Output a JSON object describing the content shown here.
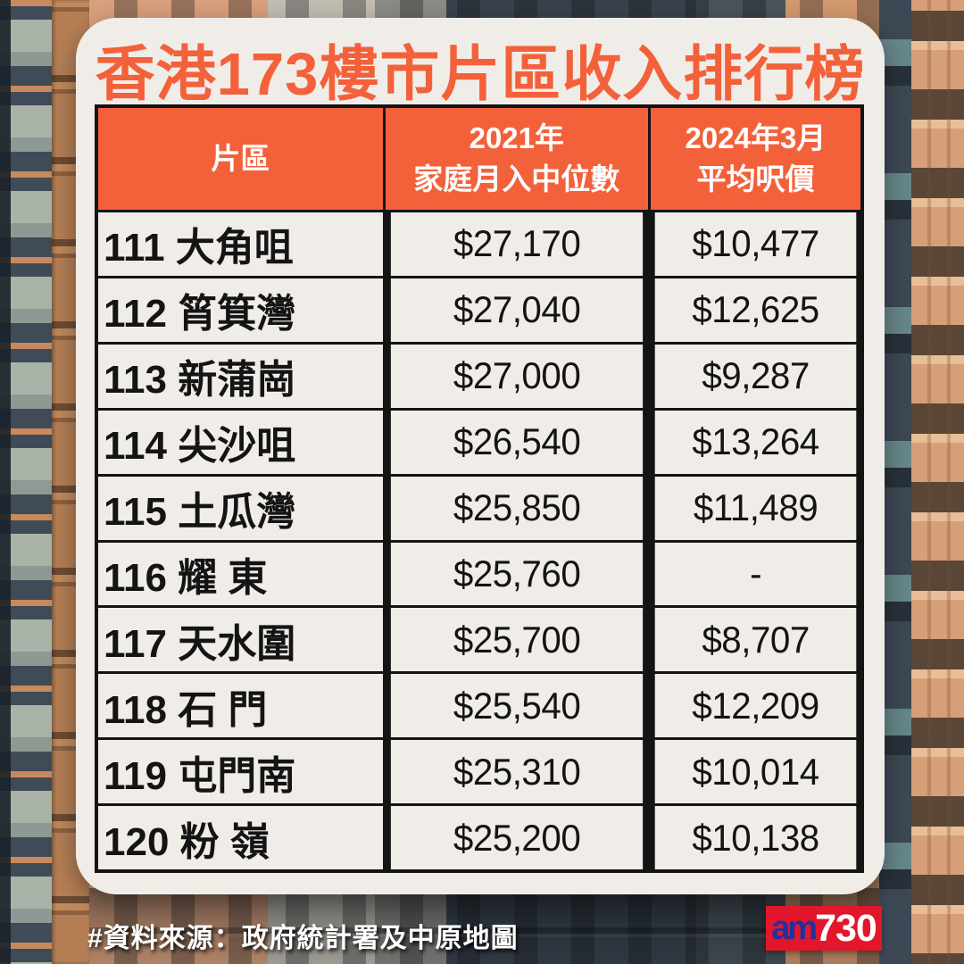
{
  "title": "香港173樓市片區收入排行榜",
  "colors": {
    "accent_orange": "#f3613b",
    "card_background": "#f0ede9",
    "table_border_black": "#141414",
    "header_text_white": "#ffffff",
    "logo_red": "#e2172c",
    "logo_blue": "#252f9e"
  },
  "table": {
    "headers": {
      "district": "片區",
      "income_line1": "2021年",
      "income_line2": "家庭月入中位數",
      "price_line1": "2024年3月",
      "price_line2": "平均呎價"
    },
    "rows": [
      {
        "district": "111 大角咀",
        "income": "$27,170",
        "price": "$10,477"
      },
      {
        "district": "112 筲箕灣",
        "income": "$27,040",
        "price": "$12,625"
      },
      {
        "district": "113 新蒲崗",
        "income": "$27,000",
        "price": "$9,287"
      },
      {
        "district": "114 尖沙咀",
        "income": "$26,540",
        "price": "$13,264"
      },
      {
        "district": "115 土瓜灣",
        "income": "$25,850",
        "price": "$11,489"
      },
      {
        "district": "116 耀 東",
        "income": "$25,760",
        "price": "-"
      },
      {
        "district": "117 天水圍",
        "income": "$25,700",
        "price": "$8,707"
      },
      {
        "district": "118 石 門",
        "income": "$25,540",
        "price": "$12,209"
      },
      {
        "district": "119 屯門南",
        "income": "$25,310",
        "price": "$10,014"
      },
      {
        "district": "120 粉 嶺",
        "income": "$25,200",
        "price": "$10,138"
      }
    ]
  },
  "footer": {
    "source": "#資料來源：政府統計署及中原地圖"
  },
  "logo": {
    "part1": "am",
    "part2": "730"
  },
  "chart_data": {
    "type": "table",
    "title": "香港173樓市片區收入排行榜",
    "columns": [
      "片區",
      "2021年 家庭月入中位數",
      "2024年3月 平均呎價"
    ],
    "rows": [
      [
        "111 大角咀",
        "$27,170",
        "$10,477"
      ],
      [
        "112 筲箕灣",
        "$27,040",
        "$12,625"
      ],
      [
        "113 新蒲崗",
        "$27,000",
        "$9,287"
      ],
      [
        "114 尖沙咀",
        "$26,540",
        "$13,264"
      ],
      [
        "115 土瓜灣",
        "$25,850",
        "$11,489"
      ],
      [
        "116 耀 東",
        "$25,760",
        "-"
      ],
      [
        "117 天水圍",
        "$25,700",
        "$8,707"
      ],
      [
        "118 石 門",
        "$25,540",
        "$12,209"
      ],
      [
        "119 屯門南",
        "$25,310",
        "$10,014"
      ],
      [
        "120 粉 嶺",
        "$25,200",
        "$10,138"
      ]
    ],
    "income_values": [
      27170,
      27040,
      27000,
      26540,
      25850,
      25760,
      25700,
      25540,
      25310,
      25200
    ],
    "price_per_sqft_values": [
      10477,
      12625,
      9287,
      13264,
      11489,
      null,
      8707,
      12209,
      10014,
      10138
    ],
    "rank_range": [
      111,
      120
    ],
    "source": "#資料來源：政府統計署及中原地圖"
  }
}
